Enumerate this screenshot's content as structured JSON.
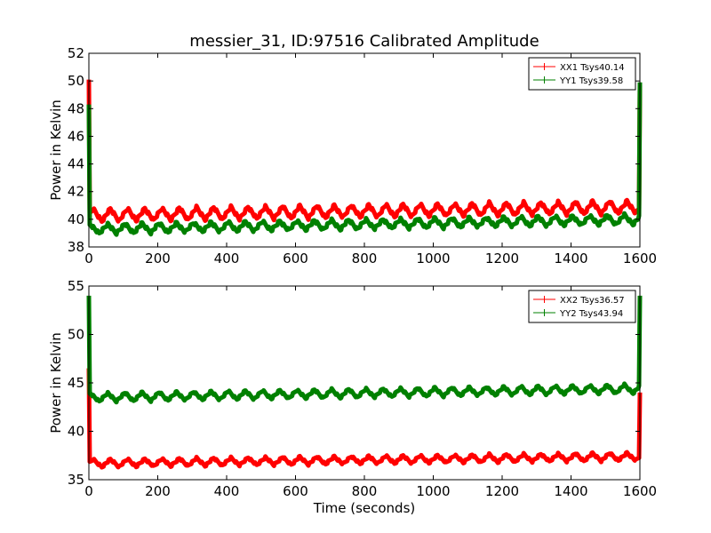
{
  "chart_data": [
    {
      "type": "line",
      "title": "messier_31, ID:97516 Calibrated Amplitude",
      "xlabel": "",
      "ylabel": "Power in Kelvin",
      "xlim": [
        0,
        1600
      ],
      "ylim": [
        38,
        52
      ],
      "xticks": [
        0,
        200,
        400,
        600,
        800,
        1000,
        1200,
        1400,
        1600
      ],
      "yticks": [
        38,
        40,
        42,
        44,
        46,
        48,
        50,
        52
      ],
      "legend_position": "top-right",
      "grid": false,
      "series": [
        {
          "name": "XX1 Tsys40.14",
          "color": "#ff0000",
          "baseline_start": 40.3,
          "baseline_end": 40.9,
          "oscillation_amplitude": 0.45,
          "oscillation_period_s": 50,
          "start_spike": 50.1,
          "end_spike": 49.7
        },
        {
          "name": "YY1 Tsys39.58",
          "color": "#008000",
          "baseline_start": 39.3,
          "baseline_end": 40.0,
          "oscillation_amplitude": 0.35,
          "oscillation_period_s": 50,
          "start_spike": 48.3,
          "end_spike": 49.9
        }
      ]
    },
    {
      "type": "line",
      "title": "",
      "xlabel": "Time (seconds)",
      "ylabel": "Power in Kelvin",
      "xlim": [
        0,
        1600
      ],
      "ylim": [
        35,
        55
      ],
      "xticks": [
        0,
        200,
        400,
        600,
        800,
        1000,
        1200,
        1400,
        1600
      ],
      "yticks": [
        35,
        40,
        45,
        50,
        55
      ],
      "legend_position": "top-right",
      "grid": false,
      "series": [
        {
          "name": "XX2 Tsys36.57",
          "color": "#ff0000",
          "baseline_start": 36.7,
          "baseline_end": 37.4,
          "oscillation_amplitude": 0.4,
          "oscillation_period_s": 50,
          "start_spike": 46.5,
          "end_spike": 44.0
        },
        {
          "name": "YY2 Tsys43.94",
          "color": "#008000",
          "baseline_start": 43.5,
          "baseline_end": 44.4,
          "oscillation_amplitude": 0.45,
          "oscillation_period_s": 50,
          "start_spike": 54.0,
          "end_spike": 54.0
        }
      ]
    }
  ]
}
